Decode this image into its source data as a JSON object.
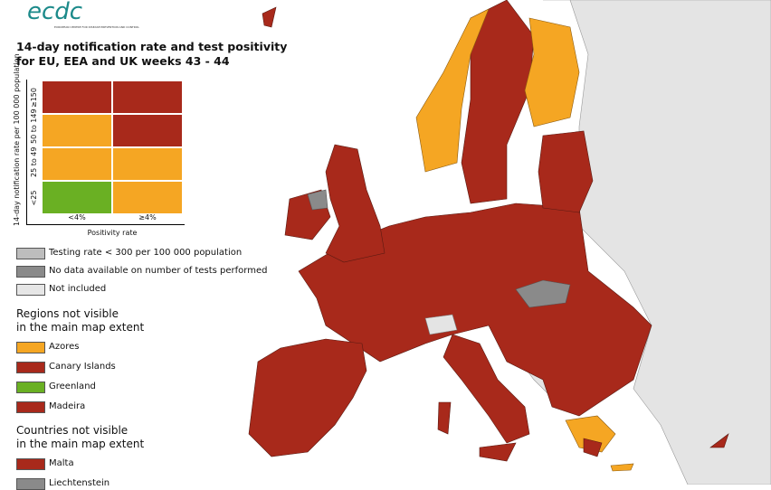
{
  "logo": {
    "text": "ecdc",
    "subtitle": "EUROPEAN CENTRE FOR DISEASE PREVENTION AND CONTROL"
  },
  "title": [
    "14-day notification rate and test positivity",
    "for EU, EEA and UK weeks 43 - 44"
  ],
  "matrix": {
    "y_label": "14-day notification rate per 100 000 population",
    "rows": [
      {
        "label": "≥150",
        "colors": [
          "#a8291b",
          "#a8291b"
        ]
      },
      {
        "label": "50 to 149",
        "colors": [
          "#f5a623",
          "#a8291b"
        ]
      },
      {
        "label": "25 to 49",
        "colors": [
          "#f5a623",
          "#f5a623"
        ]
      },
      {
        "label": "<25",
        "colors": [
          "#6ab023",
          "#f5a623"
        ]
      }
    ],
    "columns": [
      "<4%",
      "≥4%"
    ],
    "x_label": "Positivity rate"
  },
  "legend": [
    {
      "label": "Testing rate < 300 per 100 000 population",
      "color": "#bdbdbd"
    },
    {
      "label": "No data available on number of tests performed",
      "color": "#8a8a8a"
    },
    {
      "label": "Not included",
      "color": "#e6e6e6"
    }
  ],
  "sections": [
    {
      "title": [
        "Regions not visible",
        "in the main map extent"
      ],
      "items": [
        {
          "label": "Azores",
          "color": "#f5a623"
        },
        {
          "label": "Canary Islands",
          "color": "#a8291b"
        },
        {
          "label": "Greenland",
          "color": "#6ab023"
        },
        {
          "label": "Madeira",
          "color": "#a8291b"
        }
      ]
    },
    {
      "title": [
        "Countries not visible",
        "in the main map extent"
      ],
      "items": [
        {
          "label": "Malta",
          "color": "#a8291b"
        },
        {
          "label": "Liechtenstein",
          "color": "#8a8a8a"
        }
      ]
    }
  ]
}
